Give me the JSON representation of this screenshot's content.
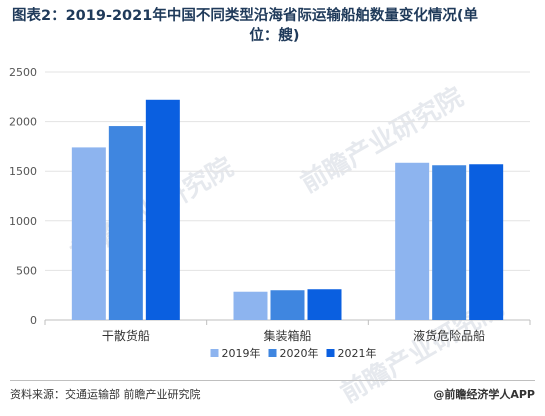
{
  "header": {
    "title_line1": "图表2：2019-2021年中国不同类型沿海省际运输船舶数量变化情况(单",
    "title_line2": "位：艘)"
  },
  "chart_data": {
    "type": "bar",
    "title": "图表2：2019-2021年中国不同类型沿海省际运输船舶数量变化情况(单位：艘)",
    "categories": [
      "干散货船",
      "集装箱船",
      "液货危险品船"
    ],
    "series": [
      {
        "name": "2019年",
        "values": [
          1740,
          285,
          1585
        ],
        "color": "#8db4ef"
      },
      {
        "name": "2020年",
        "values": [
          1955,
          300,
          1560
        ],
        "color": "#3f86e0"
      },
      {
        "name": "2021年",
        "values": [
          2220,
          310,
          1570
        ],
        "color": "#0a5fe0"
      }
    ],
    "ylim": [
      0,
      2500
    ],
    "yticks": [
      0,
      500,
      1000,
      1500,
      2000,
      2500
    ],
    "grid": true,
    "legend_position": "bottom"
  },
  "footer": {
    "source": "资料来源：交通运输部 前瞻产业研究院",
    "brand": "@前瞻经济学人APP"
  },
  "watermark": {
    "text": "前瞻产业研究院"
  }
}
